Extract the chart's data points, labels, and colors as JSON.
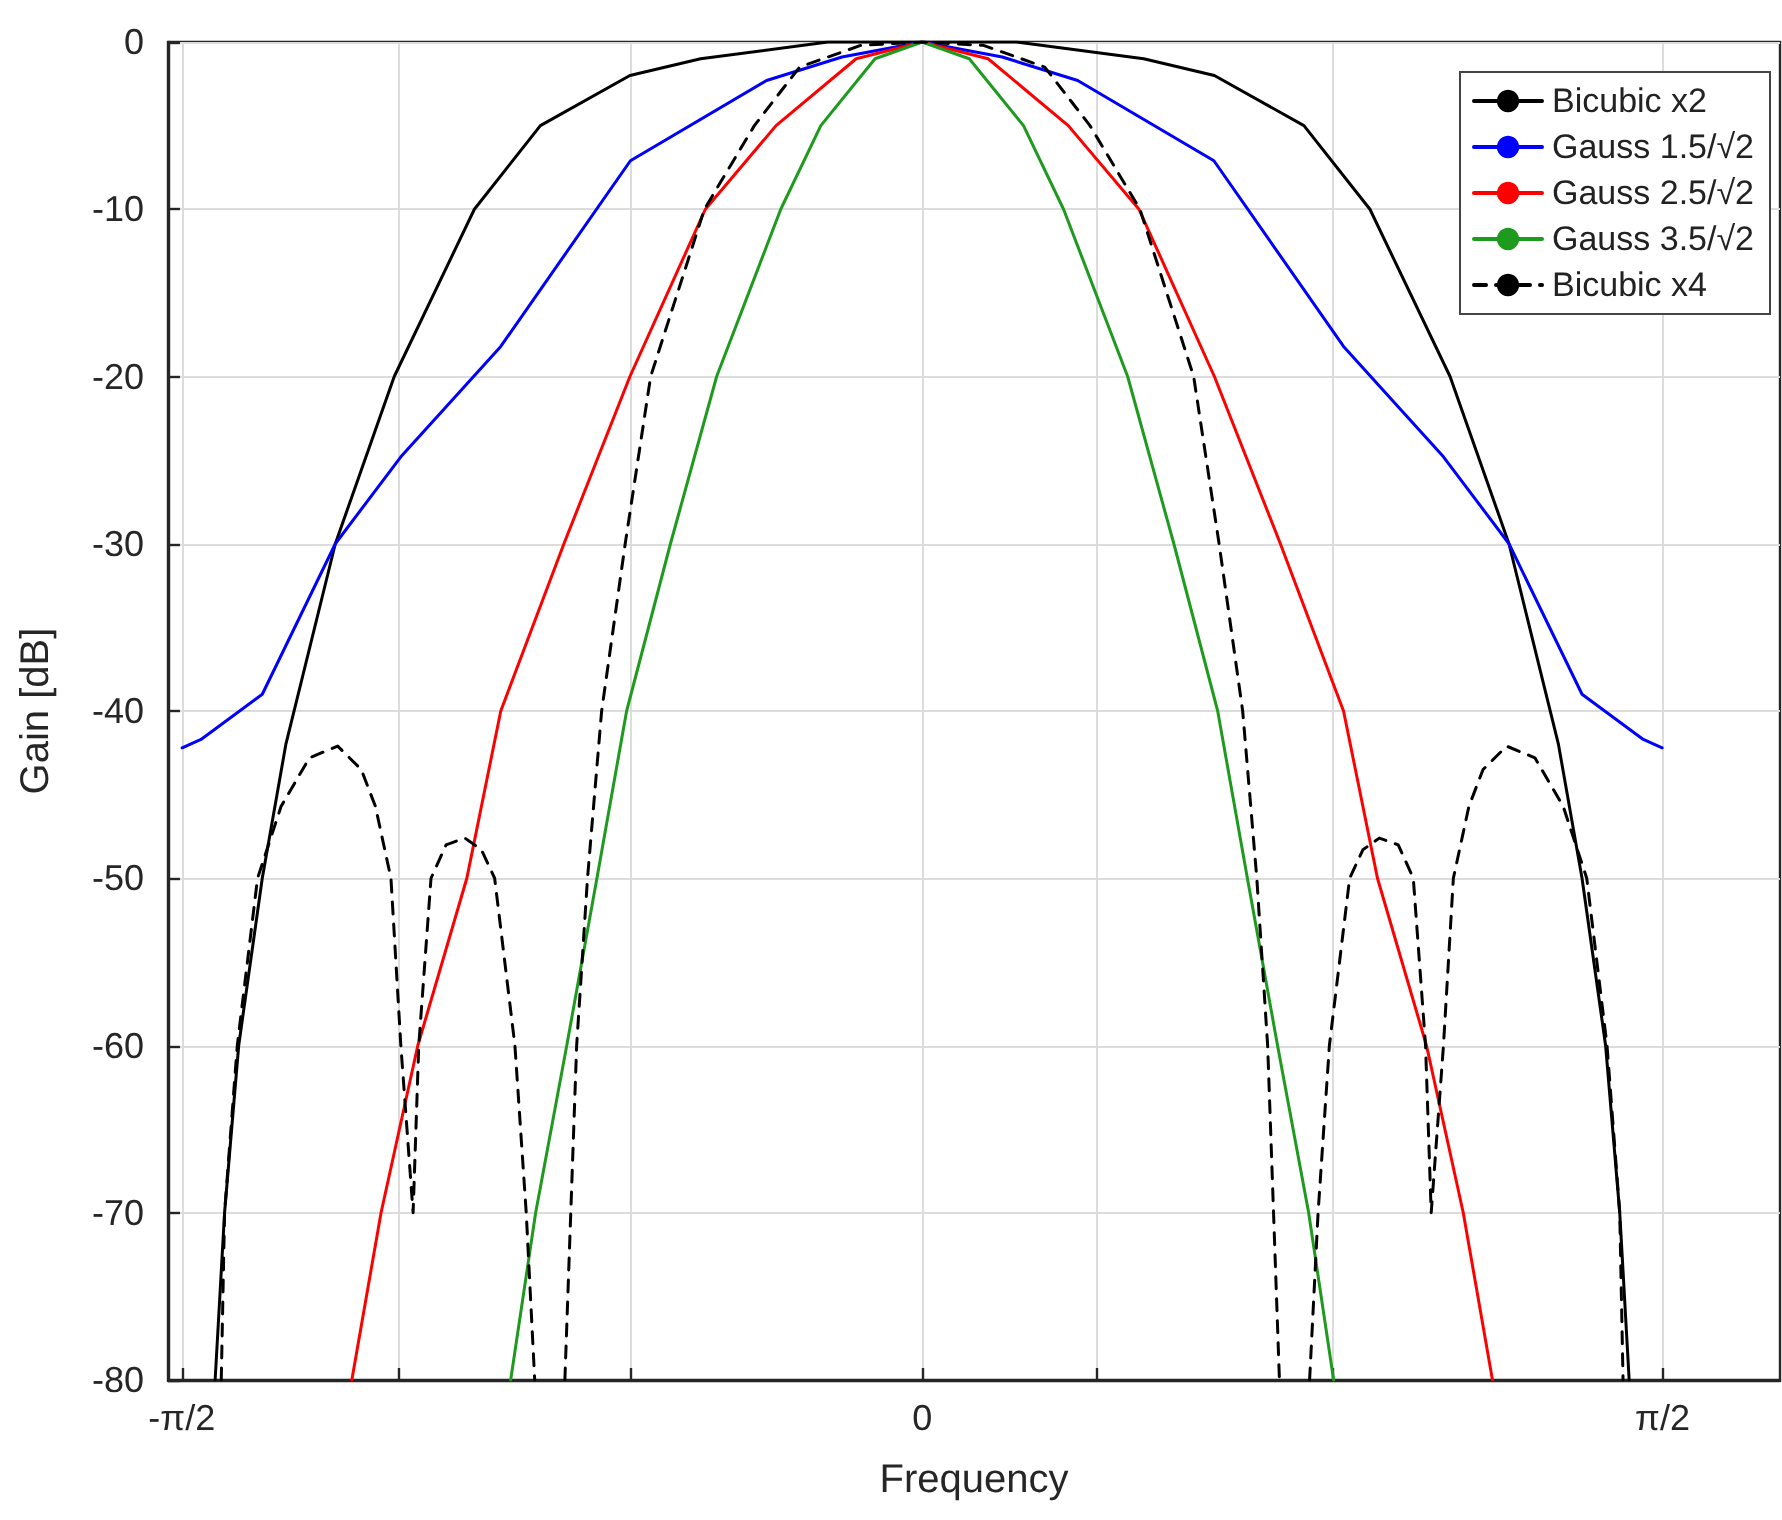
{
  "chart_data": {
    "type": "line",
    "xlabel": "Frequency",
    "ylabel": "Gain [dB]",
    "xlim": [
      -1.6,
      1.82
    ],
    "ylim": [
      -80,
      0
    ],
    "xticks": [
      {
        "value": -1.5708,
        "label": "-π/2"
      },
      {
        "value": -1.11,
        "label": null
      },
      {
        "value": -0.62,
        "label": null
      },
      0,
      {
        "value": 0.37,
        "label": null
      },
      {
        "value": 0.87,
        "label": null
      },
      {
        "value": 1.5708,
        "label": "π/2"
      }
    ],
    "yticks": [
      -80,
      -70,
      -60,
      -50,
      -40,
      -30,
      -20,
      -10,
      0
    ],
    "grid": true,
    "legend": "top right",
    "marker": "none",
    "series": [
      {
        "name": "Bicubic x2",
        "color": "#000000",
        "line_style": "solid",
        "x": [
          -1.5,
          -1.48,
          -1.45,
          -1.4,
          -1.35,
          -1.245,
          -1.12,
          -0.95,
          -0.81,
          -0.62,
          -0.47,
          -0.2,
          0,
          0.2,
          0.47,
          0.62,
          0.81,
          0.95,
          1.12,
          1.245,
          1.35,
          1.4,
          1.45,
          1.48,
          1.5
        ],
        "values": [
          -80,
          -70,
          -60,
          -50,
          -42,
          -30,
          -20,
          -10,
          -5,
          -2,
          -1,
          0,
          0,
          0,
          -1,
          -2,
          -5,
          -10,
          -20,
          -30,
          -42,
          -50,
          -60,
          -70,
          -80
        ]
      },
      {
        "name": "Gauss 1.5/√2",
        "color": "#0000ff",
        "line_style": "solid",
        "x": [
          -1.57,
          -1.53,
          -1.4,
          -1.245,
          -1.106,
          -0.894,
          -0.619,
          -0.33,
          -0.17,
          0,
          0.17,
          0.33,
          0.619,
          0.894,
          1.106,
          1.245,
          1.4,
          1.53,
          1.57
        ],
        "values": [
          -42.2,
          -41.7,
          -39,
          -30,
          -24.8,
          -18.2,
          -7.1,
          -2.3,
          -0.9,
          0,
          -0.9,
          -2.3,
          -7.1,
          -18.2,
          -24.8,
          -30,
          -39,
          -41.7,
          -42.2
        ]
      },
      {
        "name": "Gauss 2.5/√2",
        "color": "#ff0000",
        "line_style": "solid",
        "x": [
          -1.21,
          -1.148,
          -1.07,
          -0.966,
          -0.894,
          -0.76,
          -0.62,
          -0.46,
          -0.31,
          -0.14,
          0,
          0.14,
          0.31,
          0.46,
          0.62,
          0.76,
          0.894,
          0.966,
          1.07,
          1.148,
          1.21
        ],
        "values": [
          -80,
          -70,
          -60,
          -50,
          -40,
          -30,
          -20,
          -10,
          -5,
          -1,
          0,
          -1,
          -5,
          -10,
          -20,
          -30,
          -40,
          -50,
          -60,
          -70,
          -80
        ]
      },
      {
        "name": "Gauss 3.5/√2",
        "color": "#1e9a1e",
        "line_style": "solid",
        "x": [
          -0.873,
          -0.82,
          -0.754,
          -0.69,
          -0.627,
          -0.534,
          -0.436,
          -0.3,
          -0.215,
          -0.1,
          0,
          0.1,
          0.215,
          0.3,
          0.436,
          0.534,
          0.627,
          0.69,
          0.754,
          0.82,
          0.873
        ],
        "values": [
          -80,
          -70,
          -60,
          -50,
          -40,
          -30,
          -20,
          -10,
          -5,
          -1,
          0,
          -1,
          -5,
          -10,
          -20,
          -30,
          -40,
          -50,
          -60,
          -70,
          -80
        ]
      },
      {
        "name": "Bicubic x4",
        "color": "#000000",
        "line_style": "dashed",
        "x": [
          -1.487,
          -1.48,
          -1.453,
          -1.41,
          -1.36,
          -1.3,
          -1.24,
          -1.19,
          -1.16,
          -1.127,
          -1.106,
          -1.08,
          -1.068,
          -1.042,
          -1.01,
          -0.97,
          -0.935,
          -0.907,
          -0.864,
          -0.84,
          -0.822,
          -0.79,
          -0.758,
          -0.733,
          -0.71,
          -0.68,
          -0.63,
          -0.576,
          -0.462,
          -0.356,
          -0.26,
          -0.13,
          0,
          0.13,
          0.26,
          0.356,
          0.462,
          0.576,
          0.63,
          0.68,
          0.71,
          0.733,
          0.758,
          0.79,
          0.822,
          0.84,
          0.864,
          0.907,
          0.935,
          0.97,
          1.01,
          1.042,
          1.068,
          1.08,
          1.106,
          1.127,
          1.16,
          1.19,
          1.24,
          1.3,
          1.36,
          1.41,
          1.453,
          1.48,
          1.487
        ],
        "values": [
          -80,
          -70,
          -60,
          -50,
          -45.7,
          -42.8,
          -42.1,
          -43.5,
          -45.7,
          -50,
          -60,
          -70,
          -60,
          -50,
          -48,
          -47.6,
          -48.3,
          -50,
          -60,
          -70,
          -80,
          null,
          -80,
          -60,
          -50,
          -40,
          -30,
          -20,
          -10,
          -5,
          -1.5,
          -0.2,
          0,
          -0.2,
          -1.5,
          -5,
          -10,
          -20,
          -30,
          -40,
          -50,
          -60,
          -80,
          null,
          -80,
          -70,
          -60,
          -50,
          -48.3,
          -47.6,
          -48,
          -50,
          -60,
          -70,
          -60,
          -50,
          -45.7,
          -43.5,
          -42.1,
          -42.8,
          -45.7,
          -50,
          -60,
          -70,
          -80
        ]
      }
    ]
  }
}
